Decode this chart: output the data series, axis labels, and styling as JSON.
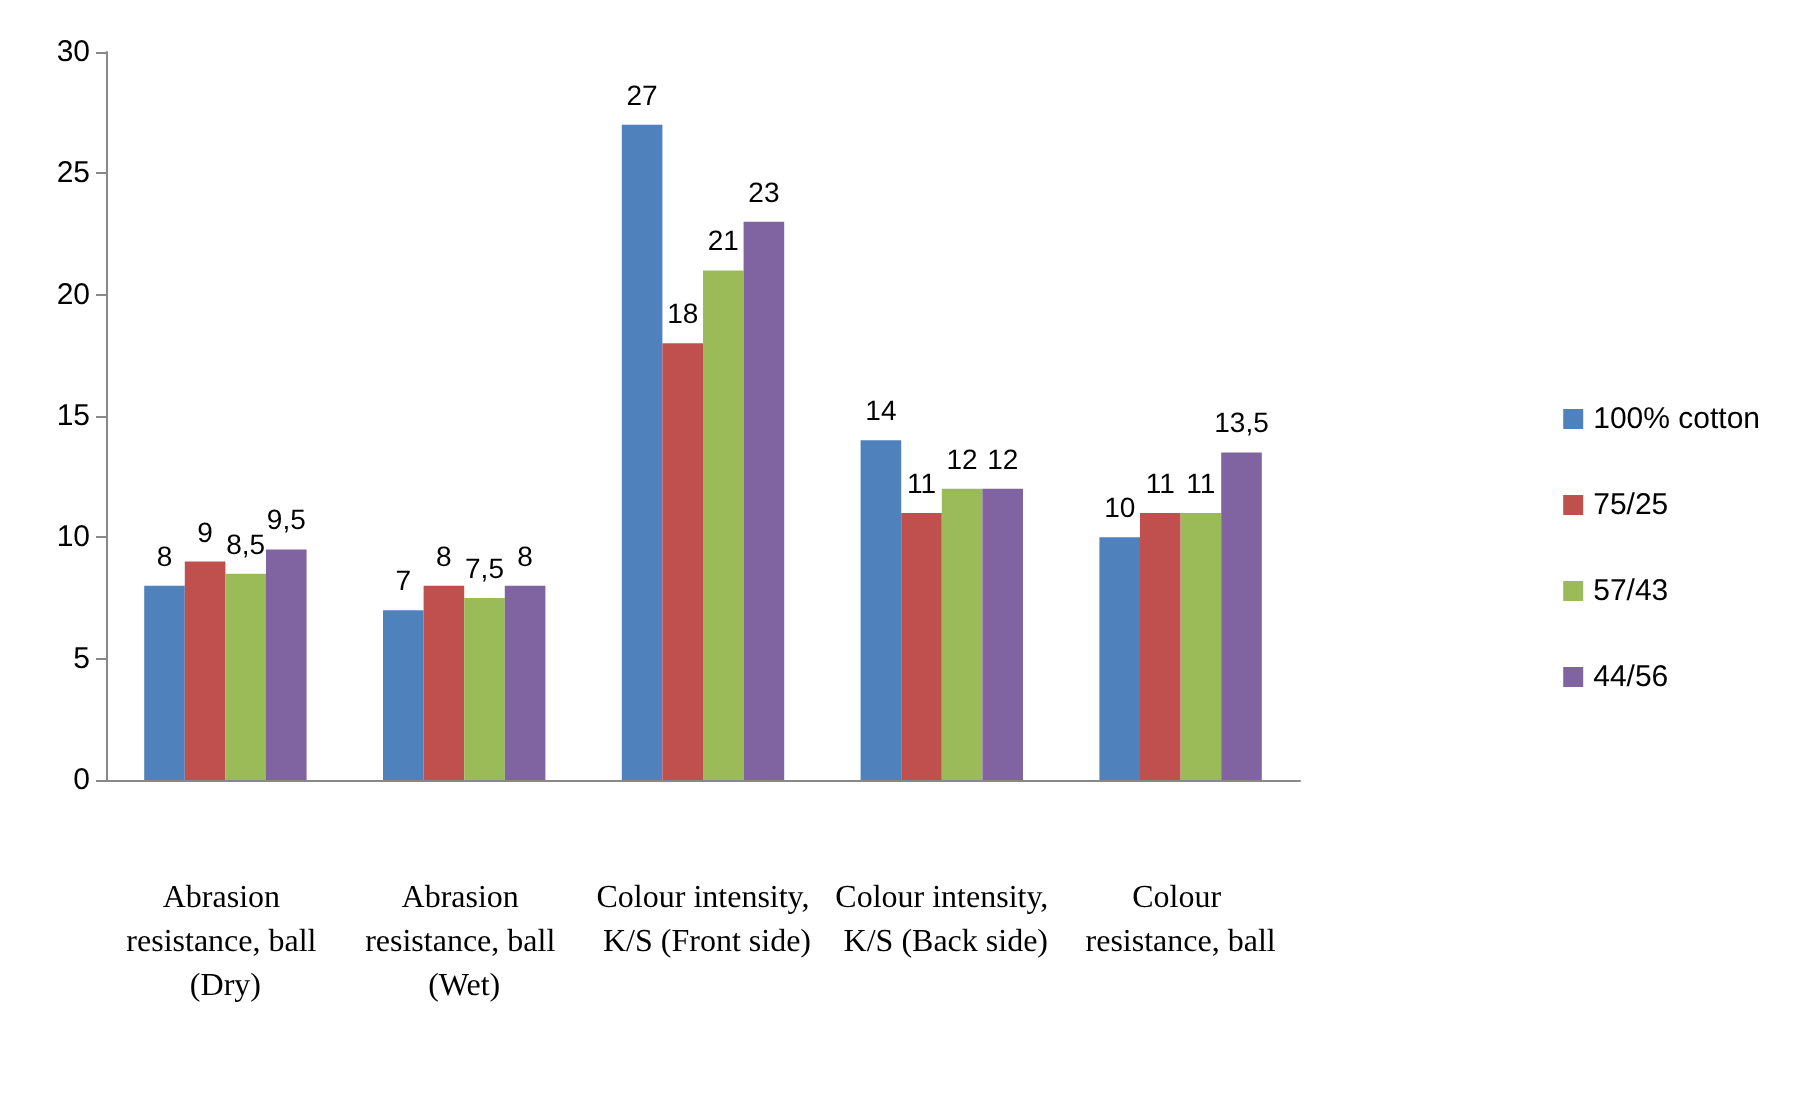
{
  "chart_data": {
    "type": "bar",
    "categories": [
      "Abrasion resistance, ball (Dry)",
      "Abrasion resistance, ball (Wet)",
      "Colour intensity, K/S (Front side)",
      "Colour intensity, K/S (Back side)",
      "Colour resistance, ball"
    ],
    "series": [
      {
        "name": "100% cotton",
        "color": "#4f81bd",
        "values": [
          8,
          7,
          27,
          14,
          10
        ],
        "value_labels": [
          "8",
          "7",
          "27",
          "14",
          "10"
        ]
      },
      {
        "name": "75/25",
        "color": "#c0504d",
        "values": [
          9,
          8,
          18,
          11,
          11
        ],
        "value_labels": [
          "9",
          "8",
          "18",
          "11",
          "11"
        ]
      },
      {
        "name": "57/43",
        "color": "#9bbb59",
        "values": [
          8.5,
          7.5,
          21,
          12,
          11
        ],
        "value_labels": [
          "8,5",
          "7,5",
          "21",
          "12",
          "11"
        ]
      },
      {
        "name": "44/56",
        "color": "#8064a2",
        "values": [
          9.5,
          8,
          23,
          12,
          13.5
        ],
        "value_labels": [
          "9,5",
          "8",
          "23",
          "12",
          "13,5"
        ]
      }
    ],
    "ylim": [
      0,
      30
    ],
    "yticks": [
      0,
      5,
      10,
      15,
      20,
      25,
      30
    ],
    "grid": false,
    "legend": "right"
  }
}
